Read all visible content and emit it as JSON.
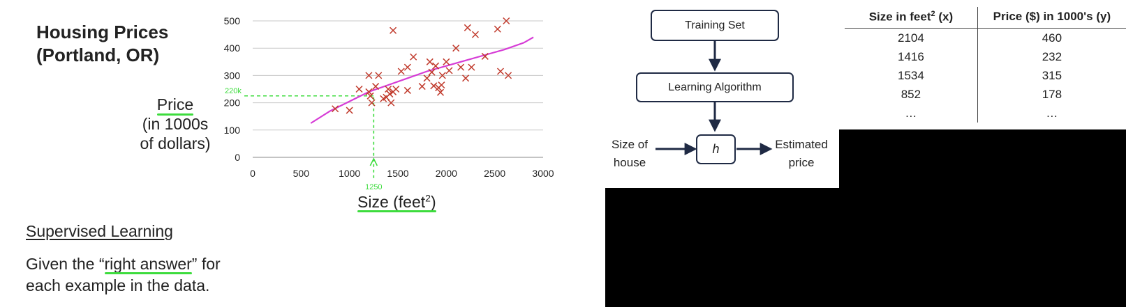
{
  "slide": {
    "title_line1": "Housing Prices",
    "title_line2": "(Portland, OR)",
    "y_label_lines": [
      "Price",
      "(in 1000s",
      "of dollars)"
    ],
    "x_label_text": "Size (feet",
    "x_label_sup": "2",
    "x_label_close": ")",
    "section_heading": "Supervised Learning",
    "desc_prefix": "Given the “",
    "desc_highlight": "right answer",
    "desc_suffix": "” for",
    "desc_line2": "each example in the data.",
    "annot_y": "220k",
    "annot_x": "1250"
  },
  "chart_data": {
    "type": "scatter",
    "xlim": [
      0,
      3000
    ],
    "ylim": [
      0,
      500
    ],
    "x_ticks": [
      0,
      500,
      1000,
      1500,
      2000,
      2500,
      3000
    ],
    "y_ticks": [
      0,
      100,
      200,
      300,
      400,
      500
    ],
    "grid": true,
    "marker": "x",
    "marker_color": "#c0392b",
    "fit_color": "#d63cd6",
    "annotation_color": "#3ddc3d",
    "points": [
      [
        852,
        178
      ],
      [
        1000,
        172
      ],
      [
        1100,
        250
      ],
      [
        1200,
        240
      ],
      [
        1200,
        300
      ],
      [
        1216,
        225
      ],
      [
        1230,
        200
      ],
      [
        1270,
        260
      ],
      [
        1300,
        300
      ],
      [
        1350,
        215
      ],
      [
        1380,
        220
      ],
      [
        1400,
        250
      ],
      [
        1416,
        232
      ],
      [
        1430,
        200
      ],
      [
        1450,
        240
      ],
      [
        1450,
        465
      ],
      [
        1480,
        250
      ],
      [
        1534,
        315
      ],
      [
        1600,
        330
      ],
      [
        1600,
        245
      ],
      [
        1660,
        368
      ],
      [
        1750,
        260
      ],
      [
        1800,
        290
      ],
      [
        1830,
        350
      ],
      [
        1850,
        312
      ],
      [
        1870,
        262
      ],
      [
        1890,
        335
      ],
      [
        1920,
        255
      ],
      [
        1940,
        238
      ],
      [
        1950,
        265
      ],
      [
        1960,
        300
      ],
      [
        2000,
        350
      ],
      [
        2030,
        318
      ],
      [
        2100,
        400
      ],
      [
        2150,
        330
      ],
      [
        2200,
        290
      ],
      [
        2220,
        475
      ],
      [
        2260,
        330
      ],
      [
        2300,
        450
      ],
      [
        2400,
        370
      ],
      [
        2530,
        470
      ],
      [
        2560,
        315
      ],
      [
        2620,
        500
      ],
      [
        2640,
        300
      ]
    ],
    "fit_curve": [
      [
        600,
        125
      ],
      [
        800,
        170
      ],
      [
        1000,
        205
      ],
      [
        1200,
        240
      ],
      [
        1400,
        265
      ],
      [
        1600,
        290
      ],
      [
        1800,
        315
      ],
      [
        2000,
        335
      ],
      [
        2200,
        355
      ],
      [
        2400,
        375
      ],
      [
        2600,
        395
      ],
      [
        2800,
        420
      ],
      [
        2900,
        440
      ]
    ],
    "annotation": {
      "x": 1250,
      "y": 220
    }
  },
  "diagram": {
    "training_set": "Training Set",
    "learning_algorithm": "Learning Algorithm",
    "hypothesis": "h",
    "input_line1": "Size of",
    "input_line2": "house",
    "output_line1": "Estimated",
    "output_line2": "price",
    "stroke_color": "#1f2a44"
  },
  "table": {
    "col1_text": "Size in feet",
    "col1_sup": "2",
    "col1_suffix": " (x)",
    "col2": "Price ($) in 1000's (y)",
    "rows": [
      [
        "2104",
        "460"
      ],
      [
        "1416",
        "232"
      ],
      [
        "1534",
        "315"
      ],
      [
        "852",
        "178"
      ],
      [
        "…",
        "…"
      ]
    ]
  }
}
